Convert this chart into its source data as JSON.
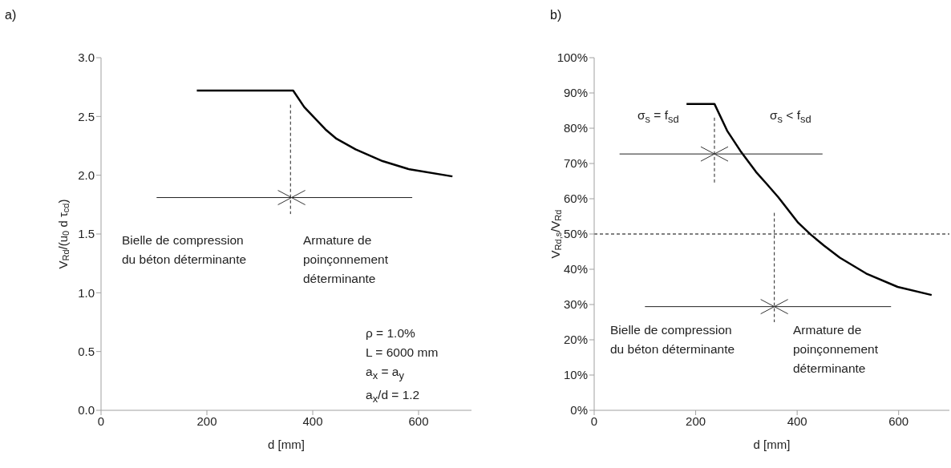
{
  "chart_data": [
    {
      "type": "line",
      "title": "a)",
      "xlabel": "d [mm]",
      "ylabel": "V$_{Rd}$/(u$_{0}$ d τ$_{cd}$)",
      "xlim": [
        0,
        700
      ],
      "xticks": [
        0,
        200,
        400,
        600
      ],
      "ylim": [
        0,
        3
      ],
      "yticks": [
        {
          "value": 0,
          "label": "0.0"
        },
        0.5,
        {
          "value": 1,
          "label": "1.0"
        },
        1.5,
        {
          "value": 2,
          "label": "2.0"
        },
        2.5,
        {
          "value": 3,
          "label": "3.0"
        }
      ],
      "series": [
        {
          "color": "#000000",
          "x": [
            181,
            363,
            384,
            424,
            445,
            481,
            532,
            583,
            664
          ],
          "values": [
            2.72,
            2.72,
            2.58,
            2.39,
            2.31,
            2.22,
            2.12,
            2.05,
            1.99
          ]
        },
        {
          "color": "#222222",
          "x": [
            105,
            588
          ],
          "values": [
            1.81,
            1.81
          ]
        },
        {
          "color": "#222222",
          "line_style": "dashed",
          "x": [
            358,
            358
          ],
          "values": [
            2.6,
            1.67
          ]
        }
      ],
      "annotations": [
        "Bielle de compression\ndu béton déterminante",
        "Armature de\npoinçonnement\ndéterminante",
        "ρ = 1.0%\nL = 6000 mm\na$_{x}$ = a$_{y}$\na$_{x}$/d = 1.2"
      ]
    },
    {
      "type": "line",
      "title": "b)",
      "xlabel": "d [mm]",
      "ylabel": "V$_{Rd,s}$/V$_{Rd}$",
      "xlim": [
        0,
        700
      ],
      "xticks": [
        0,
        200,
        400,
        600
      ],
      "ylim": [
        0,
        100
      ],
      "yticks": [
        {
          "value": 0,
          "label": "0%"
        },
        {
          "value": 10,
          "label": "10%"
        },
        {
          "value": 20,
          "label": "20%"
        },
        {
          "value": 30,
          "label": "30%"
        },
        {
          "value": 40,
          "label": "40%"
        },
        {
          "value": 50,
          "label": "50%"
        },
        {
          "value": 60,
          "label": "60%"
        },
        {
          "value": 70,
          "label": "70%"
        },
        {
          "value": 80,
          "label": "80%"
        },
        {
          "value": 90,
          "label": "90%"
        },
        {
          "value": 100,
          "label": "100%"
        }
      ],
      "series": [
        {
          "color": "#000000",
          "x": [
            182,
            237,
            262,
            288,
            319,
            340,
            363,
            402,
            427,
            453,
            484,
            536,
            598,
            665
          ],
          "values": [
            86.9,
            86.9,
            79.3,
            73.6,
            67.6,
            64.2,
            60.4,
            53.2,
            49.8,
            46.7,
            43.3,
            38.8,
            35,
            32.7
          ]
        },
        {
          "color": "#222222",
          "x": [
            50,
            450
          ],
          "values": [
            72.7,
            72.7
          ]
        },
        {
          "color": "#222222",
          "line_style": "dashed",
          "x": [
            237,
            237
          ],
          "values": [
            83,
            64
          ]
        },
        {
          "color": "#222222",
          "x": [
            100,
            585
          ],
          "values": [
            29.4,
            29.4
          ]
        },
        {
          "color": "#222222",
          "line_style": "dashed",
          "x": [
            355,
            355
          ],
          "values": [
            56,
            25
          ]
        }
      ],
      "ref_lines": [
        {
          "axis": "y",
          "value": 50,
          "color": "#000000",
          "line_style": "dashed"
        }
      ],
      "annotations": [
        "σ$_{s}$ = f$_{sd}$",
        "σ$_{s}$ < f$_{sd}$",
        "Bielle de compression\ndu béton déterminante",
        "Armature de\npoinçonnement\ndéterminante"
      ]
    }
  ]
}
